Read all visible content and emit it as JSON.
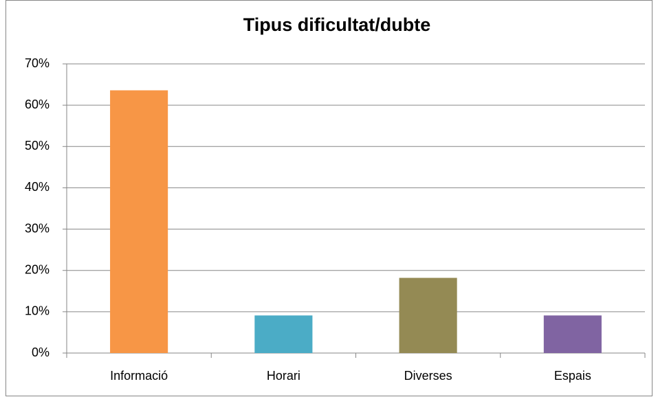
{
  "chart_data": {
    "type": "bar",
    "title": "Tipus dificultat/dubte",
    "categories": [
      "Informació",
      "Horari",
      "Diverses",
      "Espais"
    ],
    "values": [
      63.6,
      9.1,
      18.2,
      9.1
    ],
    "colors": [
      "#f79646",
      "#4bacc6",
      "#948a54",
      "#8064a2"
    ],
    "ylim": [
      0,
      70
    ],
    "yticks": [
      {
        "value": 0,
        "label": "0%"
      },
      {
        "value": 10,
        "label": "10%"
      },
      {
        "value": 20,
        "label": "20%"
      },
      {
        "value": 30,
        "label": "30%"
      },
      {
        "value": 40,
        "label": "40%"
      },
      {
        "value": 50,
        "label": "50%"
      },
      {
        "value": 60,
        "label": "60%"
      },
      {
        "value": 70,
        "label": "70%"
      }
    ],
    "grid": true
  }
}
